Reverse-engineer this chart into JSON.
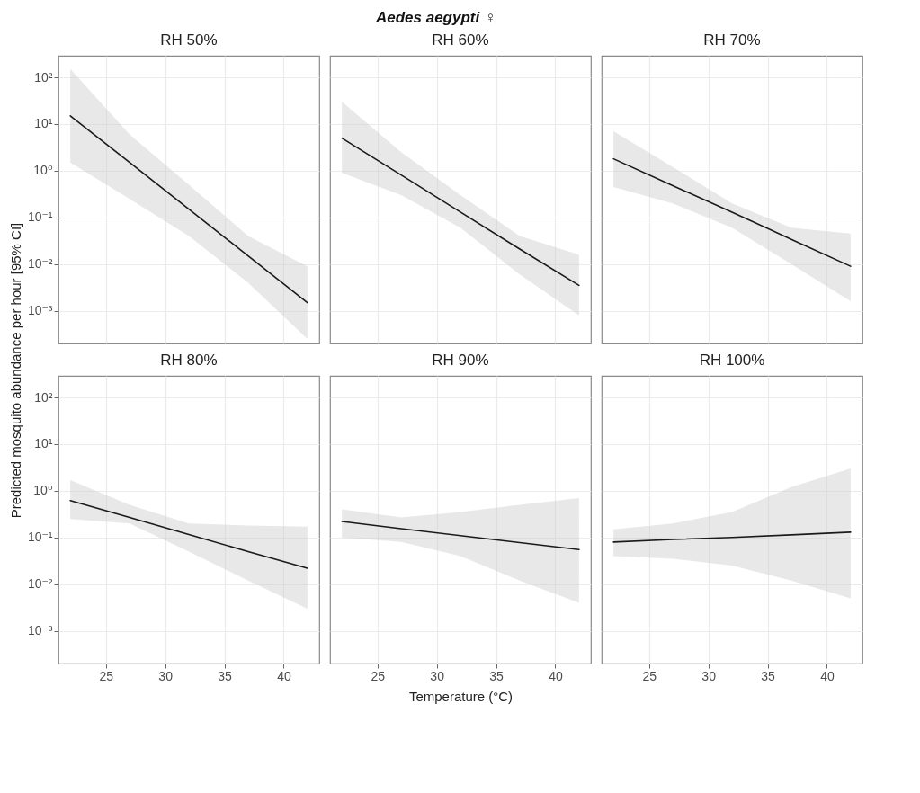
{
  "chart_data": [
    {
      "type": "line",
      "title": "RH 50%",
      "annotations": [
        "Aedes aegypti ♀"
      ],
      "ylabel": "Predicted mosquito abundance per hour [95% CI]",
      "x": [
        22,
        27,
        32,
        37,
        42
      ],
      "series": [
        {
          "color": "#1a1a1a",
          "values": [
            15,
            1.5,
            0.15,
            0.015,
            0.0015
          ],
          "lower": [
            1.5,
            0.25,
            0.04,
            0.004,
            0.00025
          ],
          "upper": [
            150,
            6,
            0.5,
            0.04,
            0.009
          ]
        }
      ],
      "xlim": [
        21,
        43
      ],
      "xticks": [
        25,
        30,
        35,
        40
      ],
      "ylim": [
        0.0002,
        290
      ],
      "yticks": [
        {
          "value": 100,
          "label": "10²"
        },
        {
          "value": 10,
          "label": "10¹"
        },
        {
          "value": 1,
          "label": "10⁰"
        },
        {
          "value": 0.1,
          "label": "10⁻¹"
        },
        {
          "value": 0.01,
          "label": "10⁻²"
        },
        {
          "value": 0.001,
          "label": "10⁻³"
        }
      ],
      "log": "y",
      "grid": true,
      "tick_labels": "y"
    },
    {
      "type": "line",
      "title": "RH 60%",
      "x": [
        22,
        27,
        32,
        37,
        42
      ],
      "series": [
        {
          "color": "#1a1a1a",
          "values": [
            5,
            0.81,
            0.13,
            0.021,
            0.0035
          ],
          "lower": [
            0.9,
            0.3,
            0.06,
            0.006,
            0.0008
          ],
          "upper": [
            30,
            2.5,
            0.3,
            0.04,
            0.016
          ]
        }
      ],
      "xlim": [
        21,
        43
      ],
      "xticks": [
        25,
        30,
        35,
        40
      ],
      "ylim": [
        0.0002,
        290
      ],
      "yticks": [
        {
          "value": 100,
          "label": null
        },
        {
          "value": 10,
          "label": null
        },
        {
          "value": 1,
          "label": null
        },
        {
          "value": 0.1,
          "label": null
        },
        {
          "value": 0.01,
          "label": null
        },
        {
          "value": 0.001,
          "label": null
        }
      ],
      "log": "y",
      "grid": true,
      "tick_labels": false
    },
    {
      "type": "line",
      "title": "RH 70%",
      "x": [
        22,
        27,
        32,
        37,
        42
      ],
      "series": [
        {
          "color": "#1a1a1a",
          "values": [
            1.8,
            0.48,
            0.13,
            0.034,
            0.009
          ],
          "lower": [
            0.45,
            0.2,
            0.06,
            0.01,
            0.0016
          ],
          "upper": [
            7,
            1.2,
            0.2,
            0.06,
            0.045
          ]
        }
      ],
      "xlim": [
        21,
        43
      ],
      "xticks": [
        25,
        30,
        35,
        40
      ],
      "ylim": [
        0.0002,
        290
      ],
      "yticks": [
        {
          "value": 100,
          "label": null
        },
        {
          "value": 10,
          "label": null
        },
        {
          "value": 1,
          "label": null
        },
        {
          "value": 0.1,
          "label": null
        },
        {
          "value": 0.01,
          "label": null
        },
        {
          "value": 0.001,
          "label": null
        }
      ],
      "log": "y",
      "grid": true,
      "tick_labels": false
    },
    {
      "type": "line",
      "title": "RH 80%",
      "x": [
        22,
        27,
        32,
        37,
        42
      ],
      "series": [
        {
          "color": "#1a1a1a",
          "values": [
            0.62,
            0.27,
            0.116,
            0.05,
            0.022
          ],
          "lower": [
            0.25,
            0.2,
            0.05,
            0.012,
            0.003
          ],
          "upper": [
            1.7,
            0.5,
            0.2,
            0.18,
            0.17
          ]
        }
      ],
      "xlim": [
        21,
        43
      ],
      "xticks": [
        25,
        30,
        35,
        40
      ],
      "ylim": [
        0.0002,
        290
      ],
      "yticks": [
        {
          "value": 100,
          "label": "10²"
        },
        {
          "value": 10,
          "label": "10¹"
        },
        {
          "value": 1,
          "label": "10⁰"
        },
        {
          "value": 0.1,
          "label": "10⁻¹"
        },
        {
          "value": 0.01,
          "label": "10⁻²"
        },
        {
          "value": 0.001,
          "label": "10⁻³"
        }
      ],
      "log": "y",
      "grid": true
    },
    {
      "type": "line",
      "title": "RH 90%",
      "xlabel": "Temperature (°C)",
      "x": [
        22,
        27,
        32,
        37,
        42
      ],
      "series": [
        {
          "color": "#1a1a1a",
          "values": [
            0.22,
            0.155,
            0.11,
            0.078,
            0.055
          ],
          "lower": [
            0.1,
            0.08,
            0.04,
            0.012,
            0.004
          ],
          "upper": [
            0.4,
            0.27,
            0.35,
            0.5,
            0.7
          ]
        }
      ],
      "xlim": [
        21,
        43
      ],
      "xticks": [
        25,
        30,
        35,
        40
      ],
      "ylim": [
        0.0002,
        290
      ],
      "yticks": [
        {
          "value": 100,
          "label": null
        },
        {
          "value": 10,
          "label": null
        },
        {
          "value": 1,
          "label": null
        },
        {
          "value": 0.1,
          "label": null
        },
        {
          "value": 0.01,
          "label": null
        },
        {
          "value": 0.001,
          "label": null
        }
      ],
      "log": "y",
      "grid": true,
      "tick_labels": "x"
    },
    {
      "type": "line",
      "title": "RH 100%",
      "x": [
        22,
        27,
        32,
        37,
        42
      ],
      "series": [
        {
          "color": "#1a1a1a",
          "values": [
            0.08,
            0.091,
            0.1,
            0.114,
            0.13
          ],
          "lower": [
            0.04,
            0.035,
            0.025,
            0.012,
            0.005
          ],
          "upper": [
            0.15,
            0.2,
            0.35,
            1.2,
            3
          ]
        }
      ],
      "xlim": [
        21,
        43
      ],
      "xticks": [
        25,
        30,
        35,
        40
      ],
      "ylim": [
        0.0002,
        290
      ],
      "yticks": [
        {
          "value": 100,
          "label": null
        },
        {
          "value": 10,
          "label": null
        },
        {
          "value": 1,
          "label": null
        },
        {
          "value": 0.1,
          "label": null
        },
        {
          "value": 0.01,
          "label": null
        },
        {
          "value": 0.001,
          "label": null
        }
      ],
      "log": "y",
      "grid": true,
      "tick_labels": "x"
    }
  ]
}
